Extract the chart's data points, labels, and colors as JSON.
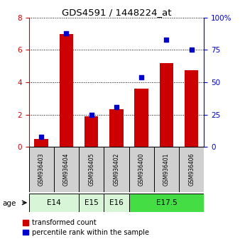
{
  "title": "GDS4591 / 1448224_at",
  "samples": [
    "GSM936403",
    "GSM936404",
    "GSM936405",
    "GSM936402",
    "GSM936400",
    "GSM936401",
    "GSM936406"
  ],
  "red_values": [
    0.5,
    7.0,
    1.9,
    2.35,
    3.6,
    5.2,
    4.75
  ],
  "blue_values": [
    8,
    88,
    25,
    31,
    54,
    83,
    75
  ],
  "age_groups": [
    {
      "label": "E14",
      "cols": [
        0,
        1
      ],
      "color": "#d8f5d8"
    },
    {
      "label": "E15",
      "cols": [
        2
      ],
      "color": "#d8f5d8"
    },
    {
      "label": "E16",
      "cols": [
        3
      ],
      "color": "#d8f5d8"
    },
    {
      "label": "E17.5",
      "cols": [
        4,
        5,
        6
      ],
      "color": "#44dd44"
    }
  ],
  "ylim_left": [
    0,
    8
  ],
  "ylim_right": [
    0,
    100
  ],
  "yticks_left": [
    0,
    2,
    4,
    6,
    8
  ],
  "yticks_right": [
    0,
    25,
    50,
    75,
    100
  ],
  "red_color": "#cc0000",
  "blue_color": "#0000cc",
  "bar_width": 0.55,
  "legend_red": "transformed count",
  "legend_blue": "percentile rank within the sample",
  "sample_box_color": "#d0d0d0",
  "fig_bg": "#ffffff"
}
